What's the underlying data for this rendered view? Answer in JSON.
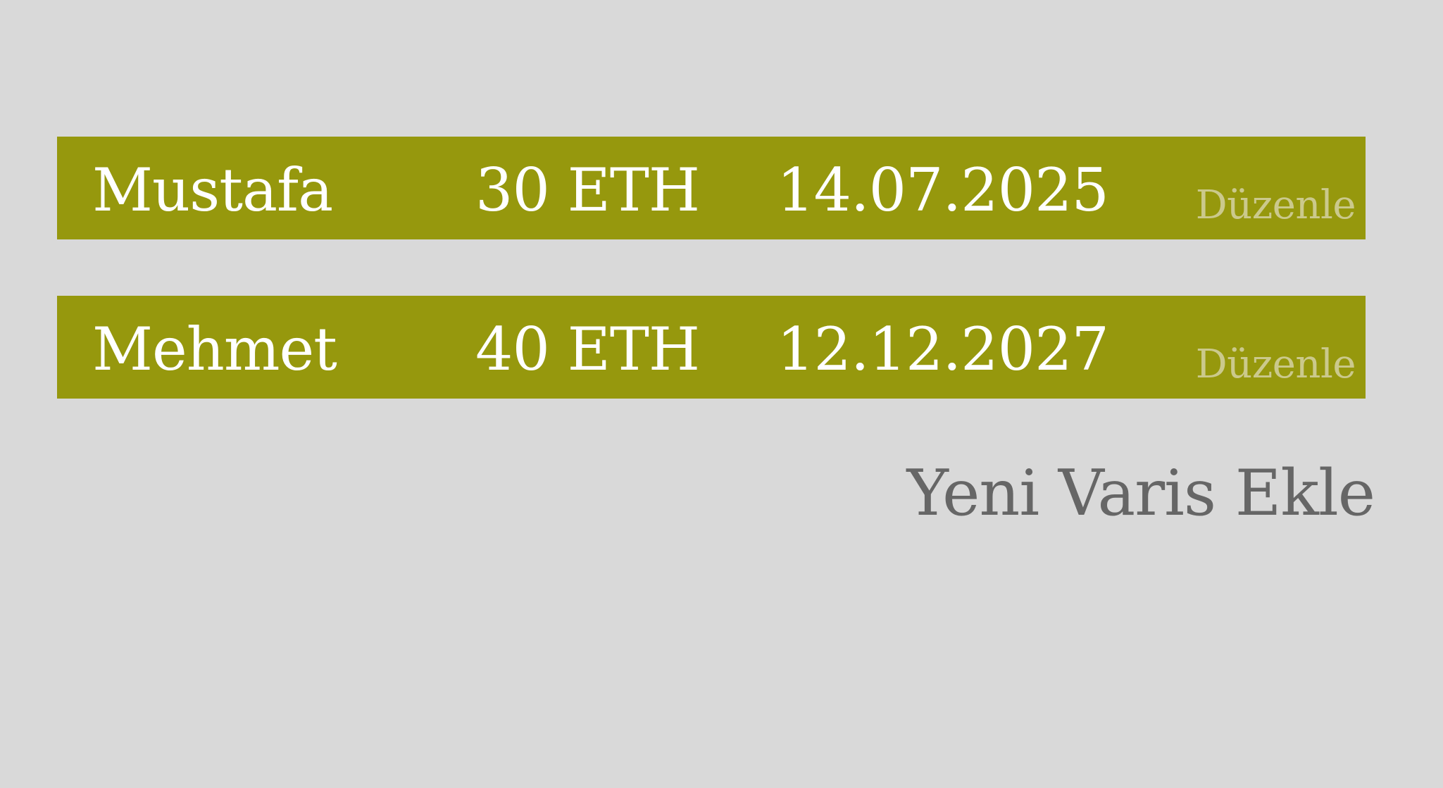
{
  "heirs": [
    {
      "name": "Mustafa",
      "amount": "30 ETH",
      "date": "14.07.2025",
      "edit_label": "Düzenle"
    },
    {
      "name": "Mehmet",
      "amount": "40 ETH",
      "date": "12.12.2027",
      "edit_label": "Düzenle"
    }
  ],
  "add_heir_label": "Yeni Varis Ekle",
  "colors": {
    "background": "#d9d9d9",
    "row_background": "#96980d",
    "row_text": "#ffffff",
    "edit_text": "#cbc98c",
    "add_text": "#666666"
  }
}
